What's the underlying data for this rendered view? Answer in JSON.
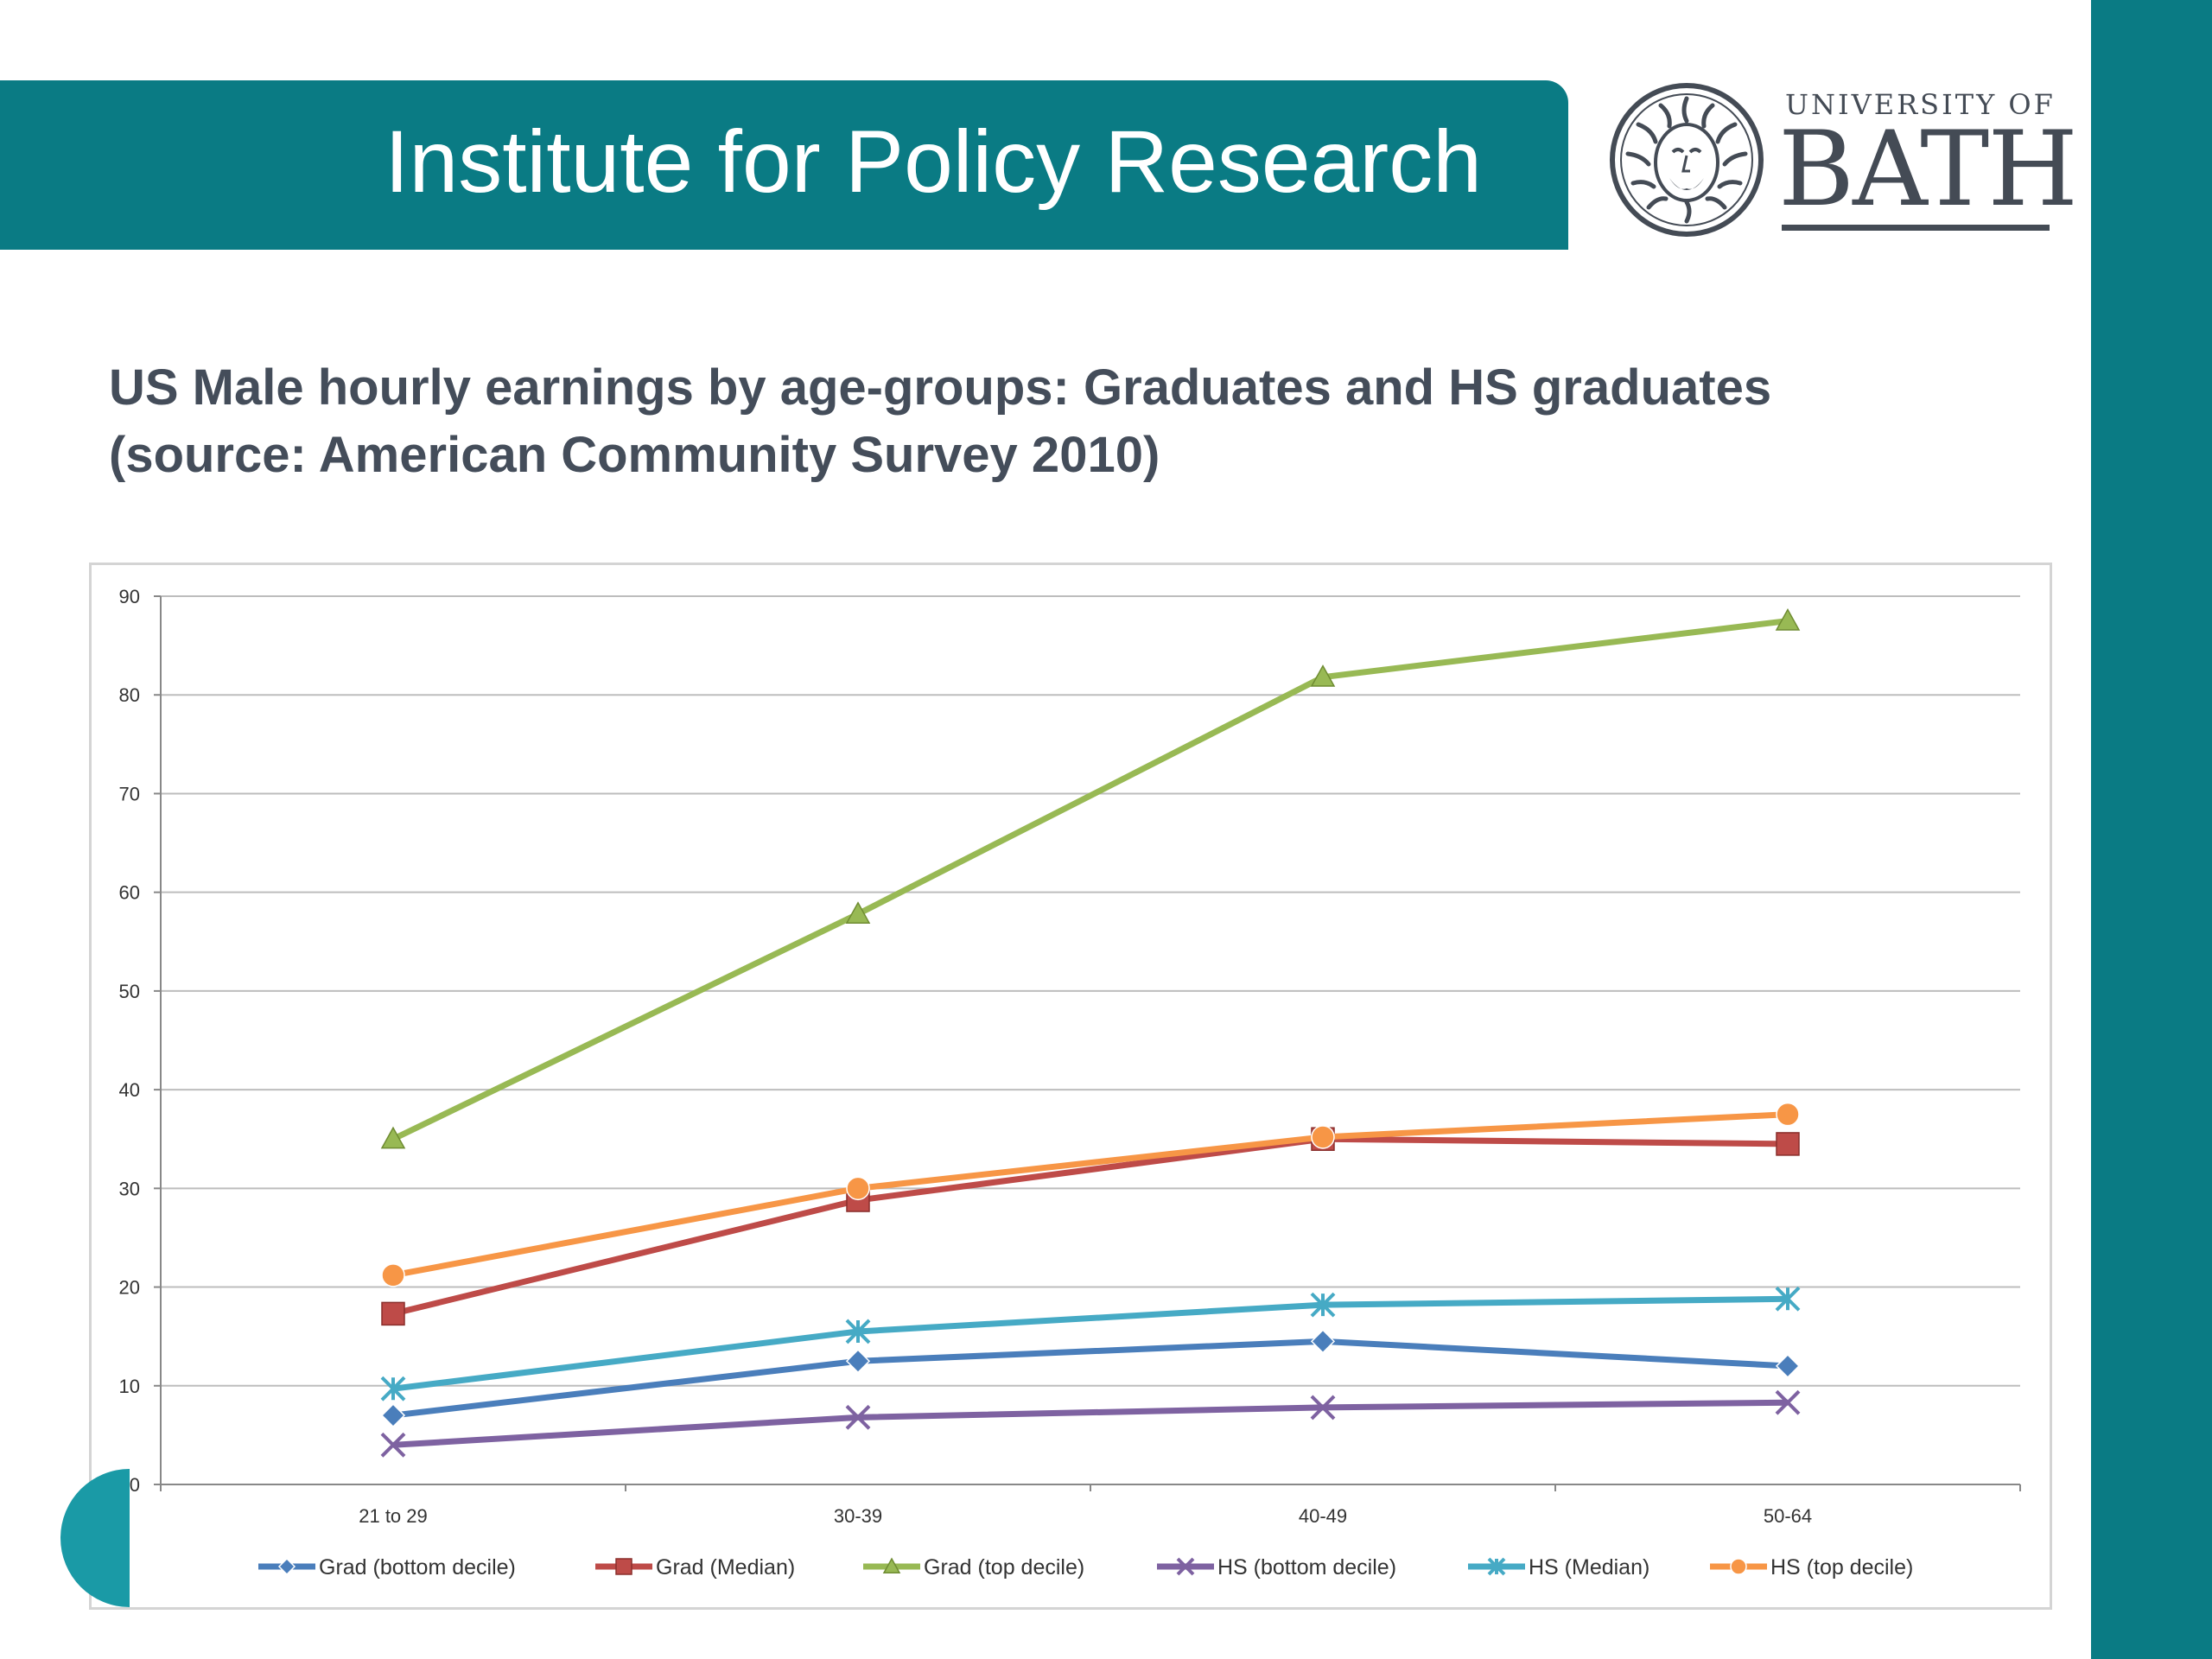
{
  "header": {
    "title": "Institute for Policy Research",
    "logo_line1": "UNIVERSITY OF",
    "logo_line2": "BATH"
  },
  "slide": {
    "title_line1": "US Male hourly earnings by age-groups: Graduates and HS graduates",
    "title_line2": "(source: American Community Survey 2010)"
  },
  "colors": {
    "brand": "#0a7b84",
    "title_text": "#444d5a"
  },
  "chart_data": {
    "type": "line",
    "categories": [
      "21 to 29",
      "30-39",
      "40-49",
      "50-64"
    ],
    "ylim": [
      0,
      90
    ],
    "yticks": [
      0,
      10,
      20,
      30,
      40,
      50,
      60,
      70,
      80,
      90
    ],
    "grid": true,
    "legend_position": "bottom",
    "series": [
      {
        "name": "Grad (bottom decile)",
        "color": "#4a7ebb",
        "marker": "diamond",
        "values": [
          7,
          12.5,
          14.5,
          12
        ]
      },
      {
        "name": "Grad (Median)",
        "color": "#be4b48",
        "marker": "square",
        "values": [
          17.3,
          28.8,
          35,
          34.5
        ]
      },
      {
        "name": "Grad (top decile)",
        "color": "#98b954",
        "marker": "triangle",
        "values": [
          35,
          57.8,
          81.8,
          87.5
        ]
      },
      {
        "name": "HS (bottom decile)",
        "color": "#7e62a1",
        "marker": "x",
        "values": [
          4,
          6.8,
          7.8,
          8.3
        ]
      },
      {
        "name": "HS (Median)",
        "color": "#46aac5",
        "marker": "star",
        "values": [
          9.7,
          15.5,
          18.2,
          18.8
        ]
      },
      {
        "name": "HS (top decile)",
        "color": "#f79646",
        "marker": "circle",
        "values": [
          21.2,
          30,
          35.2,
          37.5
        ]
      }
    ]
  }
}
